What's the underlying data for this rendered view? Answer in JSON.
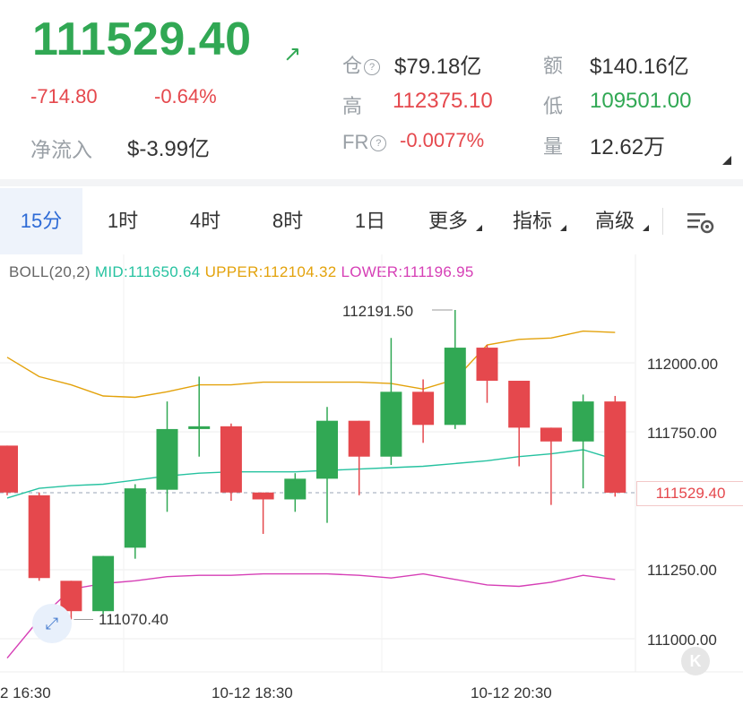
{
  "header": {
    "price": "111529.40",
    "trend_icon": "arrow-up-right-icon",
    "change_abs": "-714.80",
    "change_pct": "-0.64%",
    "netflow_label": "净流入",
    "netflow_value": "$-3.99亿",
    "oi_label": "仓",
    "oi_value": "$79.18亿",
    "turnover_label": "额",
    "turnover_value": "$140.16亿",
    "high_label": "高",
    "high_value": "112375.10",
    "low_label": "低",
    "low_value": "109501.00",
    "fr_label": "FR",
    "fr_value": "-0.0077%",
    "volume_label": "量",
    "volume_value": "12.62万",
    "colors": {
      "up": "#31a854",
      "down": "#e5484d"
    }
  },
  "tabs": [
    {
      "label": "15分",
      "active": true
    },
    {
      "label": "1时"
    },
    {
      "label": "4时"
    },
    {
      "label": "8时"
    },
    {
      "label": "1日"
    },
    {
      "label": "更多"
    },
    {
      "label": "指标"
    },
    {
      "label": "高级"
    }
  ],
  "settings_icon": "chart-settings-icon",
  "indicator": {
    "name": "BOLL(20,2)",
    "mid": "MID:111650.64",
    "upper": "UPPER:112104.32",
    "lower": "LOWER:111196.95",
    "colors": {
      "mid": "#26c2a0",
      "upper": "#e3a20b",
      "lower": "#d63fb6"
    }
  },
  "annotations": {
    "high": "112191.50",
    "low": "111070.40"
  },
  "current_price_tag": "111529.40",
  "expand_icon": "expand-icon",
  "k_button": "K",
  "chart_data": {
    "type": "candlestick",
    "y_ticks": [
      "112000.00",
      "111750.00",
      "111250.00",
      "111000.00"
    ],
    "y_tick_values": [
      112000,
      111750,
      111250,
      111000
    ],
    "x_ticks": [
      "2 16:30",
      "10-12 18:30",
      "10-12 20:30"
    ],
    "ylim": [
      110900,
      112300
    ],
    "current_price": 111529.4,
    "candles": [
      {
        "o": 111700,
        "h": 111700,
        "l": 111520,
        "c": 111530
      },
      {
        "o": 111520,
        "h": 111530,
        "l": 111210,
        "c": 111220
      },
      {
        "o": 111210,
        "h": 111210,
        "l": 111070,
        "c": 111100
      },
      {
        "o": 111100,
        "h": 111300,
        "l": 111090,
        "c": 111300
      },
      {
        "o": 111330,
        "h": 111560,
        "l": 111290,
        "c": 111545
      },
      {
        "o": 111540,
        "h": 111860,
        "l": 111460,
        "c": 111760
      },
      {
        "o": 111760,
        "h": 111950,
        "l": 111660,
        "c": 111770
      },
      {
        "o": 111770,
        "h": 111780,
        "l": 111500,
        "c": 111530
      },
      {
        "o": 111530,
        "h": 111530,
        "l": 111380,
        "c": 111505
      },
      {
        "o": 111505,
        "h": 111600,
        "l": 111460,
        "c": 111580
      },
      {
        "o": 111580,
        "h": 111840,
        "l": 111420,
        "c": 111790
      },
      {
        "o": 111790,
        "h": 111790,
        "l": 111520,
        "c": 111660
      },
      {
        "o": 111660,
        "h": 112090,
        "l": 111630,
        "c": 111895
      },
      {
        "o": 111895,
        "h": 111940,
        "l": 111710,
        "c": 111775
      },
      {
        "o": 111775,
        "h": 112191.5,
        "l": 111760,
        "c": 112055
      },
      {
        "o": 112055,
        "h": 112065,
        "l": 111855,
        "c": 111935
      },
      {
        "o": 111935,
        "h": 111935,
        "l": 111625,
        "c": 111765
      },
      {
        "o": 111765,
        "h": 111765,
        "l": 111485,
        "c": 111715
      },
      {
        "o": 111715,
        "h": 111885,
        "l": 111545,
        "c": 111860
      },
      {
        "o": 111860,
        "h": 111880,
        "l": 111515,
        "c": 111529.4
      }
    ],
    "boll_upper": [
      112020,
      111950,
      111920,
      111880,
      111875,
      111895,
      111920,
      111920,
      111930,
      111930,
      111930,
      111930,
      111925,
      111905,
      111940,
      112065,
      112085,
      112090,
      112115,
      112110
    ],
    "boll_mid": [
      111510,
      111545,
      111555,
      111560,
      111575,
      111590,
      111600,
      111605,
      111605,
      111605,
      111610,
      111615,
      111620,
      111625,
      111635,
      111645,
      111660,
      111670,
      111685,
      111650
    ],
    "boll_lower": [
      110930,
      111070,
      111180,
      111200,
      111210,
      111225,
      111230,
      111230,
      111235,
      111235,
      111235,
      111230,
      111220,
      111235,
      111215,
      111195,
      111190,
      111205,
      111230,
      111215
    ]
  }
}
